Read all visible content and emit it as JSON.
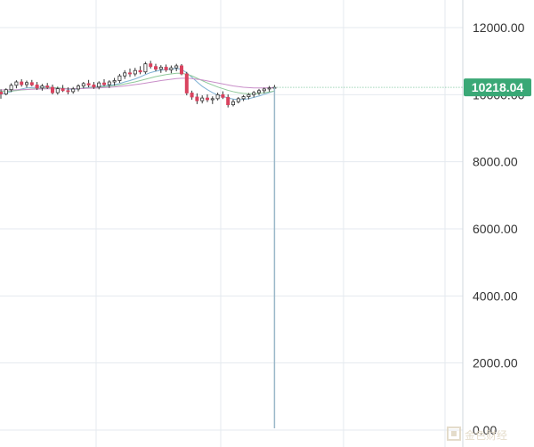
{
  "chart_data": {
    "type": "candlestick",
    "y_axis": {
      "ticks": [
        0,
        2000,
        4000,
        6000,
        8000,
        10000,
        12000
      ],
      "tick_labels": [
        "0.00",
        "2000.00",
        "4000.00",
        "6000.00",
        "8000.00",
        "10000.00",
        "12000.00"
      ],
      "range": [
        0,
        12900
      ]
    },
    "grid": true,
    "last_price": 10218.04,
    "last_price_label": "10218.04",
    "spike_low": 0.0,
    "candles": [
      {
        "o": 10080,
        "h": 10160,
        "l": 9880,
        "c": 10020
      },
      {
        "o": 10020,
        "h": 10190,
        "l": 9980,
        "c": 10150
      },
      {
        "o": 10150,
        "h": 10340,
        "l": 10080,
        "c": 10280
      },
      {
        "o": 10280,
        "h": 10430,
        "l": 10190,
        "c": 10380
      },
      {
        "o": 10380,
        "h": 10460,
        "l": 10240,
        "c": 10300
      },
      {
        "o": 10300,
        "h": 10420,
        "l": 10210,
        "c": 10360
      },
      {
        "o": 10360,
        "h": 10440,
        "l": 10250,
        "c": 10290
      },
      {
        "o": 10290,
        "h": 10380,
        "l": 10140,
        "c": 10200
      },
      {
        "o": 10200,
        "h": 10320,
        "l": 10120,
        "c": 10260
      },
      {
        "o": 10260,
        "h": 10350,
        "l": 10170,
        "c": 10220
      },
      {
        "o": 10220,
        "h": 10300,
        "l": 10010,
        "c": 10060
      },
      {
        "o": 10060,
        "h": 10240,
        "l": 10000,
        "c": 10180
      },
      {
        "o": 10180,
        "h": 10290,
        "l": 10080,
        "c": 10120
      },
      {
        "o": 10120,
        "h": 10220,
        "l": 10010,
        "c": 10090
      },
      {
        "o": 10090,
        "h": 10230,
        "l": 10030,
        "c": 10170
      },
      {
        "o": 10170,
        "h": 10310,
        "l": 10100,
        "c": 10260
      },
      {
        "o": 10260,
        "h": 10380,
        "l": 10190,
        "c": 10330
      },
      {
        "o": 10330,
        "h": 10440,
        "l": 10220,
        "c": 10290
      },
      {
        "o": 10290,
        "h": 10380,
        "l": 10170,
        "c": 10230
      },
      {
        "o": 10230,
        "h": 10400,
        "l": 10160,
        "c": 10350
      },
      {
        "o": 10350,
        "h": 10460,
        "l": 10250,
        "c": 10300
      },
      {
        "o": 10300,
        "h": 10430,
        "l": 10200,
        "c": 10380
      },
      {
        "o": 10380,
        "h": 10500,
        "l": 10270,
        "c": 10420
      },
      {
        "o": 10420,
        "h": 10620,
        "l": 10350,
        "c": 10560
      },
      {
        "o": 10560,
        "h": 10730,
        "l": 10470,
        "c": 10650
      },
      {
        "o": 10650,
        "h": 10780,
        "l": 10530,
        "c": 10620
      },
      {
        "o": 10620,
        "h": 10800,
        "l": 10550,
        "c": 10720
      },
      {
        "o": 10720,
        "h": 10850,
        "l": 10610,
        "c": 10680
      },
      {
        "o": 10680,
        "h": 10980,
        "l": 10620,
        "c": 10920
      },
      {
        "o": 10920,
        "h": 11010,
        "l": 10780,
        "c": 10840
      },
      {
        "o": 10840,
        "h": 10920,
        "l": 10700,
        "c": 10760
      },
      {
        "o": 10760,
        "h": 10880,
        "l": 10650,
        "c": 10820
      },
      {
        "o": 10820,
        "h": 10900,
        "l": 10680,
        "c": 10740
      },
      {
        "o": 10740,
        "h": 10870,
        "l": 10640,
        "c": 10800
      },
      {
        "o": 10800,
        "h": 10920,
        "l": 10700,
        "c": 10860
      },
      {
        "o": 10860,
        "h": 10910,
        "l": 10580,
        "c": 10620
      },
      {
        "o": 10620,
        "h": 10680,
        "l": 9980,
        "c": 10050
      },
      {
        "o": 10050,
        "h": 10120,
        "l": 9850,
        "c": 9930
      },
      {
        "o": 9930,
        "h": 10040,
        "l": 9720,
        "c": 9820
      },
      {
        "o": 9820,
        "h": 9980,
        "l": 9740,
        "c": 9900
      },
      {
        "o": 9900,
        "h": 10010,
        "l": 9780,
        "c": 9850
      },
      {
        "o": 9850,
        "h": 9950,
        "l": 9720,
        "c": 9880
      },
      {
        "o": 9880,
        "h": 10060,
        "l": 9830,
        "c": 10000
      },
      {
        "o": 10000,
        "h": 10100,
        "l": 9870,
        "c": 9920
      },
      {
        "o": 9920,
        "h": 10010,
        "l": 9620,
        "c": 9700
      },
      {
        "o": 9700,
        "h": 9860,
        "l": 9650,
        "c": 9790
      },
      {
        "o": 9790,
        "h": 9930,
        "l": 9740,
        "c": 9880
      },
      {
        "o": 9880,
        "h": 9990,
        "l": 9810,
        "c": 9940
      },
      {
        "o": 9940,
        "h": 10050,
        "l": 9860,
        "c": 10000
      },
      {
        "o": 10000,
        "h": 10110,
        "l": 9920,
        "c": 10060
      },
      {
        "o": 10060,
        "h": 10170,
        "l": 9990,
        "c": 10120
      },
      {
        "o": 10120,
        "h": 10210,
        "l": 10040,
        "c": 10170
      },
      {
        "o": 10170,
        "h": 10260,
        "l": 10090,
        "c": 10200
      },
      {
        "o": 10200,
        "h": 10290,
        "l": 10130,
        "c": 10218
      }
    ],
    "moving_averages": [
      {
        "name": "",
        "color": "#7fb2d4",
        "values": [
          10030,
          10050,
          10090,
          10140,
          10170,
          10200,
          10210,
          10220,
          10230,
          10230,
          10210,
          10200,
          10190,
          10160,
          10160,
          10170,
          10200,
          10220,
          10230,
          10250,
          10260,
          10280,
          10300,
          10330,
          10380,
          10420,
          10470,
          10530,
          10600,
          10660,
          10700,
          10730,
          10750,
          10770,
          10780,
          10760,
          10650,
          10520,
          10380,
          10250,
          10150,
          10060,
          9990,
          9950,
          9900,
          9870,
          9850,
          9860,
          9880,
          9920,
          9960,
          10010,
          10060,
          10110
        ]
      },
      {
        "name": "",
        "color": "#8fc99a",
        "values": [
          10100,
          10100,
          10110,
          10120,
          10140,
          10150,
          10170,
          10180,
          10190,
          10200,
          10200,
          10200,
          10190,
          10180,
          10180,
          10180,
          10190,
          10200,
          10210,
          10220,
          10240,
          10250,
          10270,
          10290,
          10320,
          10350,
          10380,
          10420,
          10460,
          10500,
          10540,
          10570,
          10600,
          10620,
          10640,
          10640,
          10610,
          10560,
          10490,
          10420,
          10350,
          10290,
          10230,
          10180,
          10130,
          10090,
          10060,
          10040,
          10030,
          10030,
          10040,
          10060,
          10080,
          10110
        ]
      },
      {
        "name": "",
        "color": "#c98fc9",
        "values": [
          10140,
          10140,
          10140,
          10145,
          10150,
          10155,
          10160,
          10165,
          10170,
          10175,
          10175,
          10175,
          10175,
          10175,
          10175,
          10180,
          10185,
          10190,
          10195,
          10200,
          10210,
          10220,
          10230,
          10245,
          10260,
          10280,
          10300,
          10320,
          10345,
          10370,
          10395,
          10420,
          10440,
          10460,
          10480,
          10490,
          10490,
          10480,
          10460,
          10440,
          10410,
          10380,
          10350,
          10320,
          10290,
          10260,
          10240,
          10220,
          10210,
          10200,
          10200,
          10200,
          10205,
          10210
        ]
      }
    ],
    "colors": {
      "up": "#3aa565",
      "down": "#d9435f",
      "wick": "#333333",
      "grid": "#e4eaef",
      "spike": "#9bb8c9",
      "price_line": "#6cbf93",
      "price_tag_bg": "#3aa876"
    }
  },
  "watermark": {
    "text": "金色财经",
    "icon": "ledger-logo-icon"
  }
}
